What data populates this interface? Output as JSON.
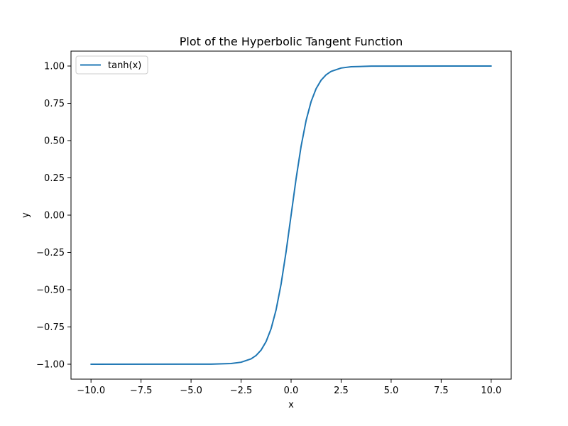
{
  "chart_data": {
    "type": "line",
    "title": "Plot of the Hyperbolic Tangent Function",
    "xlabel": "x",
    "ylabel": "y",
    "xlim": [
      -11.0,
      11.0
    ],
    "ylim": [
      -1.1,
      1.1
    ],
    "xticks": [
      -10.0,
      -7.5,
      -5.0,
      -2.5,
      0.0,
      2.5,
      5.0,
      7.5,
      10.0
    ],
    "xtick_labels": [
      "−10.0",
      "−7.5",
      "−5.0",
      "−2.5",
      "0.0",
      "2.5",
      "5.0",
      "7.5",
      "10.0"
    ],
    "yticks": [
      -1.0,
      -0.75,
      -0.5,
      -0.25,
      0.0,
      0.25,
      0.5,
      0.75,
      1.0
    ],
    "ytick_labels": [
      "−1.00",
      "−0.75",
      "−0.50",
      "−0.25",
      "0.00",
      "0.25",
      "0.50",
      "0.75",
      "1.00"
    ],
    "grid": false,
    "legend_position": "top-left",
    "series": [
      {
        "name": "tanh(x)",
        "color": "#1f77b4",
        "x": [
          -10.0,
          -4.0,
          -3.0,
          -2.5,
          -2.0,
          -1.75,
          -1.5,
          -1.25,
          -1.0,
          -0.75,
          -0.5,
          -0.25,
          0.0,
          0.25,
          0.5,
          0.75,
          1.0,
          1.25,
          1.5,
          1.75,
          2.0,
          2.5,
          3.0,
          4.0,
          10.0
        ],
        "y": [
          -1.0,
          -0.9993,
          -0.9951,
          -0.9866,
          -0.964,
          -0.9414,
          -0.9051,
          -0.8483,
          -0.7616,
          -0.6351,
          -0.4621,
          -0.2449,
          0.0,
          0.2449,
          0.4621,
          0.6351,
          0.7616,
          0.8483,
          0.9051,
          0.9414,
          0.964,
          0.9866,
          0.9951,
          0.9993,
          1.0
        ]
      }
    ]
  }
}
